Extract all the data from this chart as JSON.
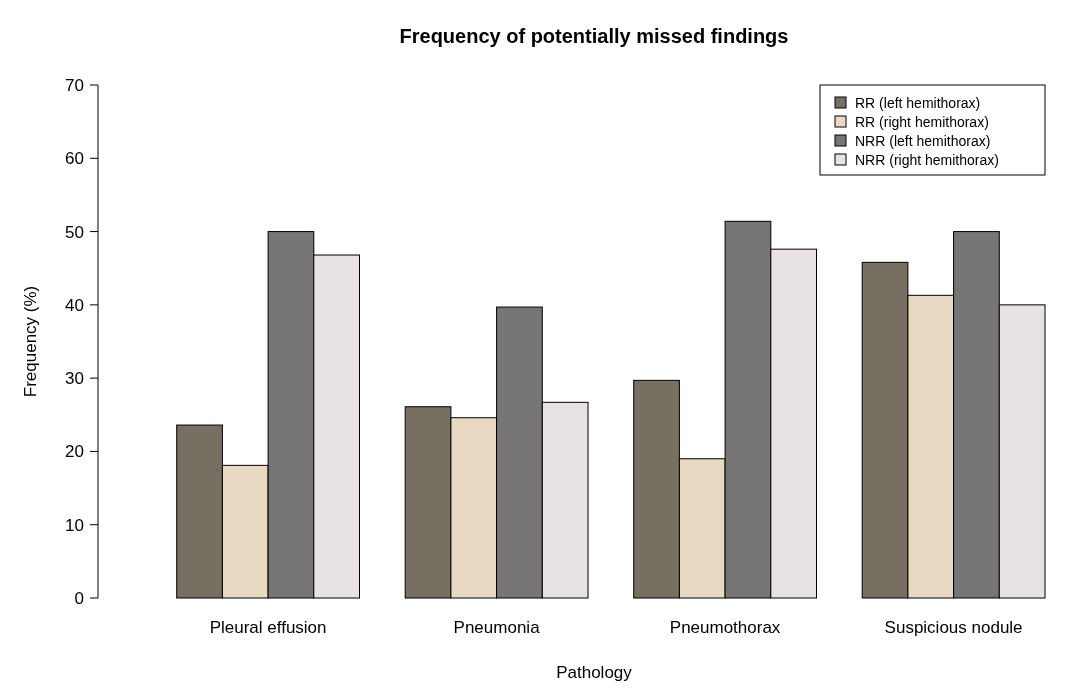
{
  "chart_data": {
    "type": "bar",
    "title": "Frequency of potentially missed findings",
    "xlabel": "Pathology",
    "ylabel": "Frequency (%)",
    "categories": [
      "Pleural effusion",
      "Pneumonia",
      "Pneumothorax",
      "Suspicious nodule"
    ],
    "series": [
      {
        "name": "RR (left hemithorax)",
        "color": "#776f62",
        "values": [
          23.6,
          26.1,
          29.7,
          45.8
        ]
      },
      {
        "name": "RR (right hemithorax)",
        "color": "#e8d9c3",
        "values": [
          18.1,
          24.6,
          19.0,
          41.3
        ]
      },
      {
        "name": "NRR (left hemithorax)",
        "color": "#777576",
        "values": [
          50.0,
          39.7,
          51.4,
          50.0
        ]
      },
      {
        "name": "NRR (right hemithorax)",
        "color": "#e8e2e3",
        "values": [
          46.8,
          26.7,
          47.6,
          40.0
        ]
      }
    ],
    "ylim": [
      0,
      70
    ],
    "yticks": [
      0,
      10,
      20,
      30,
      40,
      50,
      60,
      70
    ],
    "grid": false,
    "legend": "top right"
  }
}
